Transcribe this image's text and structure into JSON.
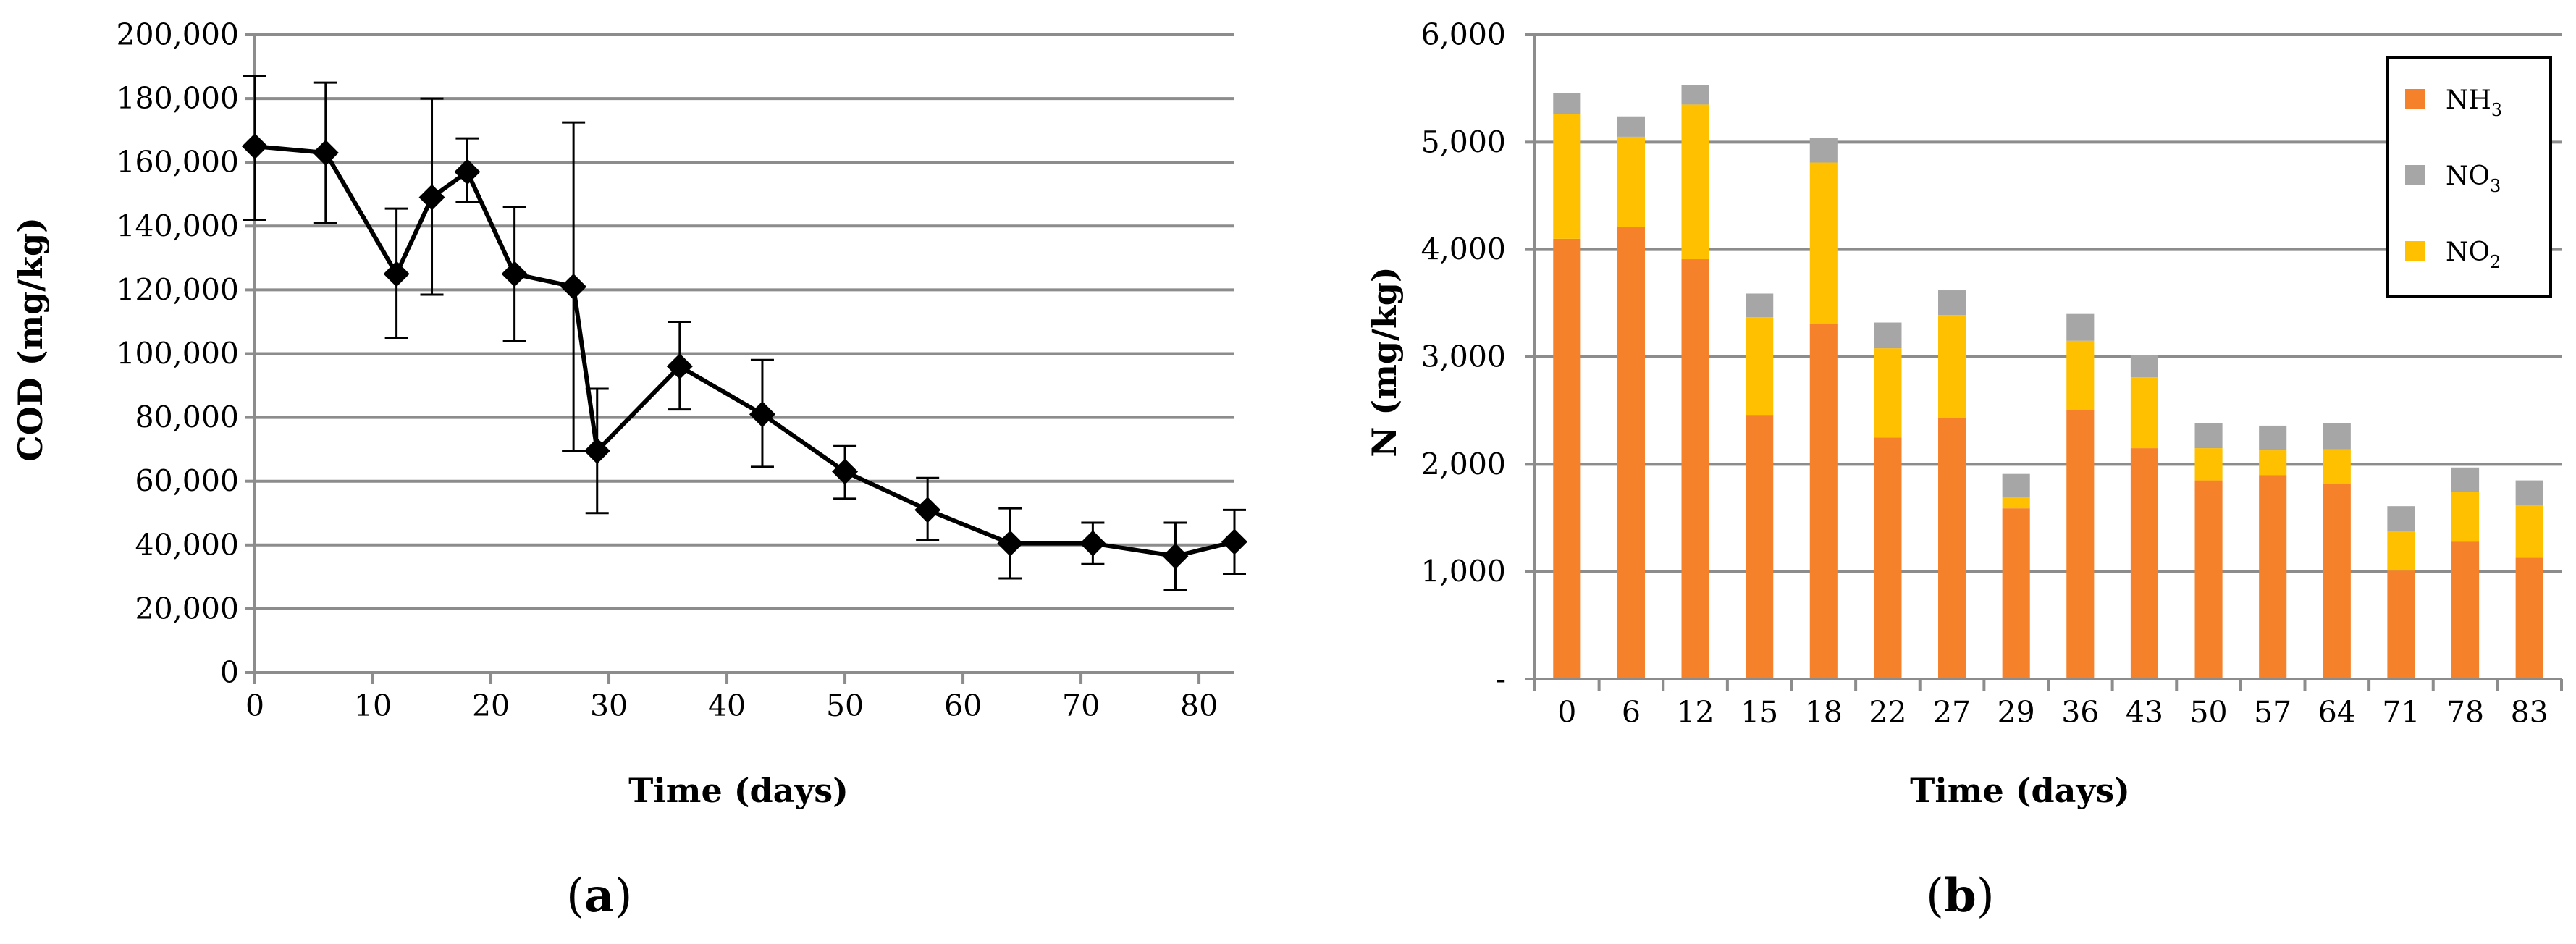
{
  "chart_data": [
    {
      "type": "line",
      "panel_label": "a",
      "xlabel": "Time (days)",
      "ylabel": "COD (mg/kg)",
      "xlim": [
        0,
        83
      ],
      "ylim": [
        0,
        200000
      ],
      "x_ticks": [
        0,
        10,
        20,
        30,
        40,
        50,
        60,
        70,
        80
      ],
      "y_ticks": [
        0,
        20000,
        40000,
        60000,
        80000,
        100000,
        120000,
        140000,
        160000,
        180000,
        200000
      ],
      "y_tick_labels": [
        "0",
        "20,000",
        "40,000",
        "60,000",
        "80,000",
        "100,000",
        "120,000",
        "140,000",
        "160,000",
        "180,000",
        "200,000"
      ],
      "grid": true,
      "series": [
        {
          "name": "COD",
          "color": "#000000",
          "marker": "diamond",
          "x": [
            0,
            6,
            12,
            15,
            18,
            22,
            27,
            29,
            36,
            43,
            50,
            57,
            64,
            71,
            78,
            83
          ],
          "values": [
            165000,
            163000,
            125000,
            149000,
            157000,
            125000,
            121000,
            69500,
            96000,
            81000,
            63000,
            51000,
            40500,
            40500,
            36500,
            41000
          ],
          "error_upper": [
            187000,
            185000,
            145500,
            180000,
            167500,
            146000,
            172500,
            89000,
            110000,
            98000,
            71000,
            61000,
            51500,
            47000,
            47000,
            51000
          ],
          "error_lower": [
            142000,
            141000,
            105000,
            118500,
            147500,
            104000,
            69500,
            50000,
            82500,
            64500,
            54500,
            41500,
            29500,
            34000,
            26000,
            31000
          ]
        }
      ]
    },
    {
      "type": "bar",
      "stacked": true,
      "panel_label": "b",
      "xlabel": "Time (days)",
      "ylabel": "N (mg/kg)",
      "ylim": [
        0,
        6000
      ],
      "y_ticks": [
        0,
        1000,
        2000,
        3000,
        4000,
        5000,
        6000
      ],
      "y_tick_labels": [
        "-",
        "1,000",
        "2,000",
        "3,000",
        "4,000",
        "5,000",
        "6,000"
      ],
      "grid": true,
      "legend_position": "top-right",
      "categories": [
        "0",
        "6",
        "12",
        "15",
        "18",
        "22",
        "27",
        "29",
        "36",
        "43",
        "50",
        "57",
        "64",
        "71",
        "78",
        "83"
      ],
      "series": [
        {
          "name": "NH",
          "subscript": "3",
          "color": "#F6812B",
          "values": [
            4100,
            4210,
            3910,
            2460,
            3310,
            2250,
            2430,
            1590,
            2510,
            2150,
            1850,
            1900,
            1820,
            1010,
            1280,
            1130
          ]
        },
        {
          "name": "NO",
          "subscript": "2",
          "color": "#FFC000",
          "values": [
            1160,
            840,
            1440,
            910,
            1500,
            830,
            960,
            100,
            640,
            660,
            300,
            230,
            320,
            370,
            460,
            490
          ]
        },
        {
          "name": "NO",
          "subscript": "3",
          "color": "#A6A6A6",
          "values": [
            200,
            190,
            180,
            220,
            230,
            240,
            230,
            220,
            250,
            210,
            230,
            230,
            240,
            230,
            230,
            230
          ]
        }
      ],
      "legend_order": [
        0,
        2,
        1
      ]
    }
  ]
}
